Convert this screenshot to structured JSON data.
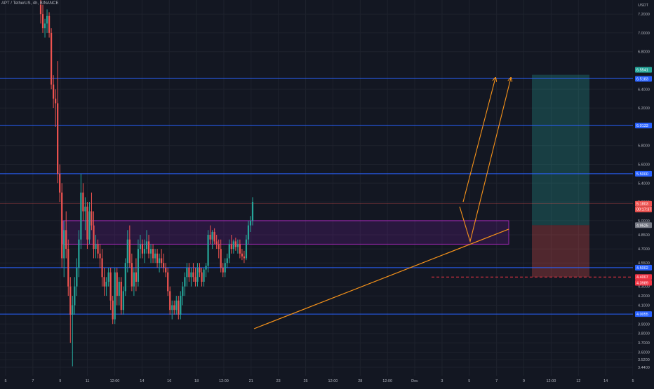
{
  "header": {
    "symbol": "APT / TetherUS, 4h, BINANCE",
    "currency": "USDT"
  },
  "colors": {
    "background": "#131722",
    "grid": "#1e222d",
    "up": "#26a69a",
    "down": "#ef5350",
    "hline": "#2962ff",
    "trendline": "#f7931a",
    "zone_fill": "#7b1fa2",
    "target_fill": "#26a69a",
    "stop_fill": "#ef5350",
    "stop_line": "#f23645",
    "axis_text": "#b2b5be"
  },
  "chart_data": {
    "type": "candlestick",
    "title": "",
    "xlabel": "",
    "ylabel": "",
    "ylim": [
      3.35,
      7.35
    ],
    "y_scale": "linear",
    "grid": true,
    "y_ticks": [
      "7.2000",
      "7.0000",
      "6.8000",
      "6.4000",
      "6.2000",
      "5.8000",
      "5.6000",
      "5.4000",
      "5.2000",
      "5.0000",
      "4.8500",
      "4.7000",
      "4.5500",
      "4.3000",
      "4.2000",
      "4.1000",
      "3.9000",
      "3.8000",
      "3.7000",
      "3.6000",
      "3.5200",
      "3.4400"
    ],
    "y_tick_values": [
      7.2,
      7.0,
      6.8,
      6.4,
      6.2,
      5.8,
      5.6,
      5.4,
      5.2,
      5.0,
      4.85,
      4.7,
      4.55,
      4.3,
      4.2,
      4.1,
      3.9,
      3.8,
      3.7,
      3.6,
      3.52,
      3.44
    ],
    "x_ticks": [
      "5",
      "7",
      "9",
      "11",
      "12:00",
      "14",
      "16",
      "18",
      "12:00",
      "21",
      "23",
      "25",
      "12:00",
      "28",
      "12:00",
      "Dec",
      "3",
      "5",
      "7",
      "9",
      "12:00",
      "12",
      "14",
      "5"
    ],
    "price_labels": [
      {
        "text": "6.5541",
        "value": 6.5541,
        "kind": "target"
      },
      {
        "text": "6.5183",
        "value": 6.5183,
        "kind": "level"
      },
      {
        "text": "6.0133",
        "value": 6.0133,
        "kind": "level"
      },
      {
        "text": "5.5000",
        "value": 5.5,
        "kind": "level"
      },
      {
        "text": "5.1803",
        "value": 5.1803,
        "kind": "last"
      },
      {
        "text": "00:17:37",
        "value": 5.1,
        "kind": "countdown"
      },
      {
        "text": "4.9525",
        "value": 4.9525,
        "kind": "entry"
      },
      {
        "text": "4.5002",
        "value": 4.5002,
        "kind": "level"
      },
      {
        "text": "4.4007",
        "value": 4.4007,
        "kind": "stop"
      },
      {
        "text": "4.3989",
        "value": 4.3989,
        "kind": "stop2"
      },
      {
        "text": "4.0055",
        "value": 4.0055,
        "kind": "level"
      }
    ],
    "horizontal_levels": [
      6.5183,
      6.0133,
      5.5,
      4.5002,
      4.0055
    ],
    "last_price": 5.1803,
    "supply_zone": {
      "top": 5.0,
      "bottom": 4.75
    },
    "trendline": {
      "from": {
        "x": 362,
        "y": 3.85
      },
      "to": {
        "x": 725,
        "y": 4.91
      }
    },
    "projection_path": [
      {
        "x": 655,
        "y": 5.15
      },
      {
        "x": 670,
        "y": 4.78
      },
      {
        "x": 728,
        "y": 6.52
      }
    ],
    "projection_path_2": [
      {
        "x": 660,
        "y": 5.2
      },
      {
        "x": 706,
        "y": 6.52
      }
    ],
    "position": {
      "x_start": 758,
      "x_end": 840,
      "target": 6.5541,
      "entry": 4.9525,
      "stop": 4.4007
    },
    "stop_line": {
      "value": 4.4007,
      "x_start": 615
    },
    "candles_x": {
      "start": 58,
      "step": 3.02
    },
    "candles": [
      [
        7.3,
        7.35,
        7.1,
        7.2
      ],
      [
        7.2,
        7.3,
        7.0,
        7.05
      ],
      [
        7.05,
        7.15,
        6.95,
        7.1
      ],
      [
        7.1,
        7.25,
        7.0,
        7.18
      ],
      [
        7.18,
        7.22,
        6.95,
        7.0
      ],
      [
        7.0,
        7.05,
        6.4,
        6.45
      ],
      [
        6.45,
        6.55,
        6.2,
        6.3
      ],
      [
        6.3,
        6.4,
        6.0,
        6.25
      ],
      [
        6.25,
        6.7,
        5.4,
        5.5
      ],
      [
        5.5,
        5.6,
        5.2,
        5.3
      ],
      [
        5.3,
        5.4,
        4.5,
        4.6
      ],
      [
        4.6,
        5.0,
        4.4,
        4.9
      ],
      [
        4.9,
        5.1,
        4.6,
        4.7
      ],
      [
        4.7,
        4.8,
        4.2,
        4.3
      ],
      [
        4.3,
        4.4,
        3.7,
        4.0
      ],
      [
        4.0,
        4.2,
        3.45,
        4.1
      ],
      [
        4.1,
        4.4,
        4.0,
        4.3
      ],
      [
        4.3,
        4.6,
        4.2,
        4.5
      ],
      [
        4.5,
        4.9,
        4.4,
        4.8
      ],
      [
        4.8,
        5.5,
        4.7,
        5.3
      ],
      [
        5.3,
        5.4,
        5.0,
        5.1
      ],
      [
        5.1,
        5.25,
        4.9,
        5.15
      ],
      [
        5.15,
        5.2,
        4.7,
        4.8
      ],
      [
        4.8,
        5.2,
        4.75,
        5.1
      ],
      [
        5.1,
        5.3,
        4.9,
        4.95
      ],
      [
        4.95,
        5.1,
        4.6,
        4.7
      ],
      [
        4.7,
        4.85,
        4.6,
        4.75
      ],
      [
        4.75,
        4.8,
        4.6,
        4.65
      ],
      [
        4.65,
        4.75,
        4.5,
        4.6
      ],
      [
        4.6,
        4.7,
        4.3,
        4.4
      ],
      [
        4.4,
        4.5,
        4.2,
        4.3
      ],
      [
        4.3,
        4.4,
        4.2,
        4.35
      ],
      [
        4.35,
        4.5,
        4.3,
        4.45
      ],
      [
        4.45,
        4.5,
        4.05,
        4.15
      ],
      [
        4.15,
        4.2,
        3.9,
        3.95
      ],
      [
        3.95,
        4.5,
        3.9,
        4.45
      ],
      [
        4.45,
        4.5,
        4.1,
        4.2
      ],
      [
        4.2,
        4.4,
        4.1,
        4.35
      ],
      [
        4.35,
        4.4,
        4.0,
        4.05
      ],
      [
        4.05,
        4.3,
        4.0,
        4.25
      ],
      [
        4.25,
        4.6,
        4.2,
        4.55
      ],
      [
        4.55,
        4.9,
        4.45,
        4.8
      ],
      [
        4.8,
        4.95,
        4.5,
        4.55
      ],
      [
        4.55,
        4.65,
        4.25,
        4.3
      ],
      [
        4.3,
        4.5,
        4.2,
        4.45
      ],
      [
        4.45,
        4.6,
        4.25,
        4.35
      ],
      [
        4.35,
        4.8,
        4.3,
        4.7
      ],
      [
        4.7,
        4.85,
        4.6,
        4.75
      ],
      [
        4.75,
        4.8,
        4.6,
        4.65
      ],
      [
        4.65,
        4.8,
        4.55,
        4.7
      ],
      [
        4.7,
        4.9,
        4.65,
        4.78
      ],
      [
        4.78,
        4.85,
        4.6,
        4.65
      ],
      [
        4.65,
        4.75,
        4.55,
        4.7
      ],
      [
        4.7,
        4.75,
        4.55,
        4.6
      ],
      [
        4.6,
        4.7,
        4.55,
        4.65
      ],
      [
        4.65,
        4.7,
        4.5,
        4.55
      ],
      [
        4.55,
        4.65,
        4.45,
        4.6
      ],
      [
        4.6,
        4.7,
        4.5,
        4.55
      ],
      [
        4.55,
        4.65,
        4.45,
        4.5
      ],
      [
        4.5,
        4.55,
        4.4,
        4.45
      ],
      [
        4.45,
        4.5,
        4.2,
        4.25
      ],
      [
        4.25,
        4.3,
        4.0,
        4.05
      ],
      [
        4.05,
        4.15,
        3.95,
        4.1
      ],
      [
        4.1,
        4.15,
        4.0,
        4.05
      ],
      [
        4.05,
        4.2,
        4.0,
        4.15
      ],
      [
        4.15,
        4.2,
        3.95,
        4.0
      ],
      [
        4.0,
        4.25,
        3.95,
        4.2
      ],
      [
        4.2,
        4.35,
        4.1,
        4.3
      ],
      [
        4.3,
        4.45,
        4.2,
        4.4
      ],
      [
        4.4,
        4.55,
        4.3,
        4.5
      ],
      [
        4.5,
        4.55,
        4.35,
        4.4
      ],
      [
        4.4,
        4.5,
        4.3,
        4.45
      ],
      [
        4.45,
        4.55,
        4.35,
        4.4
      ],
      [
        4.4,
        4.5,
        4.3,
        4.35
      ],
      [
        4.35,
        4.55,
        4.3,
        4.5
      ],
      [
        4.5,
        4.55,
        4.4,
        4.45
      ],
      [
        4.45,
        4.5,
        4.3,
        4.35
      ],
      [
        4.35,
        4.5,
        4.3,
        4.48
      ],
      [
        4.48,
        4.55,
        4.4,
        4.52
      ],
      [
        4.52,
        4.9,
        4.45,
        4.85
      ],
      [
        4.85,
        4.95,
        4.75,
        4.8
      ],
      [
        4.8,
        4.9,
        4.7,
        4.88
      ],
      [
        4.88,
        4.92,
        4.75,
        4.78
      ],
      [
        4.78,
        4.85,
        4.7,
        4.75
      ],
      [
        4.75,
        4.8,
        4.6,
        4.7
      ],
      [
        4.7,
        4.8,
        4.45,
        4.5
      ],
      [
        4.5,
        4.55,
        4.4,
        4.45
      ],
      [
        4.45,
        4.6,
        4.4,
        4.55
      ],
      [
        4.55,
        4.65,
        4.5,
        4.6
      ],
      [
        4.6,
        4.8,
        4.55,
        4.75
      ],
      [
        4.75,
        4.85,
        4.65,
        4.7
      ],
      [
        4.7,
        4.8,
        4.65,
        4.78
      ],
      [
        4.78,
        4.82,
        4.68,
        4.72
      ],
      [
        4.72,
        4.8,
        4.65,
        4.75
      ],
      [
        4.75,
        4.8,
        4.6,
        4.65
      ],
      [
        4.65,
        4.7,
        4.58,
        4.62
      ],
      [
        4.62,
        4.68,
        4.55,
        4.6
      ],
      [
        4.6,
        4.85,
        4.58,
        4.8
      ],
      [
        4.8,
        5.0,
        4.75,
        4.95
      ],
      [
        4.95,
        5.05,
        4.88,
        5.0
      ],
      [
        5.0,
        5.25,
        4.95,
        5.2
      ]
    ]
  }
}
